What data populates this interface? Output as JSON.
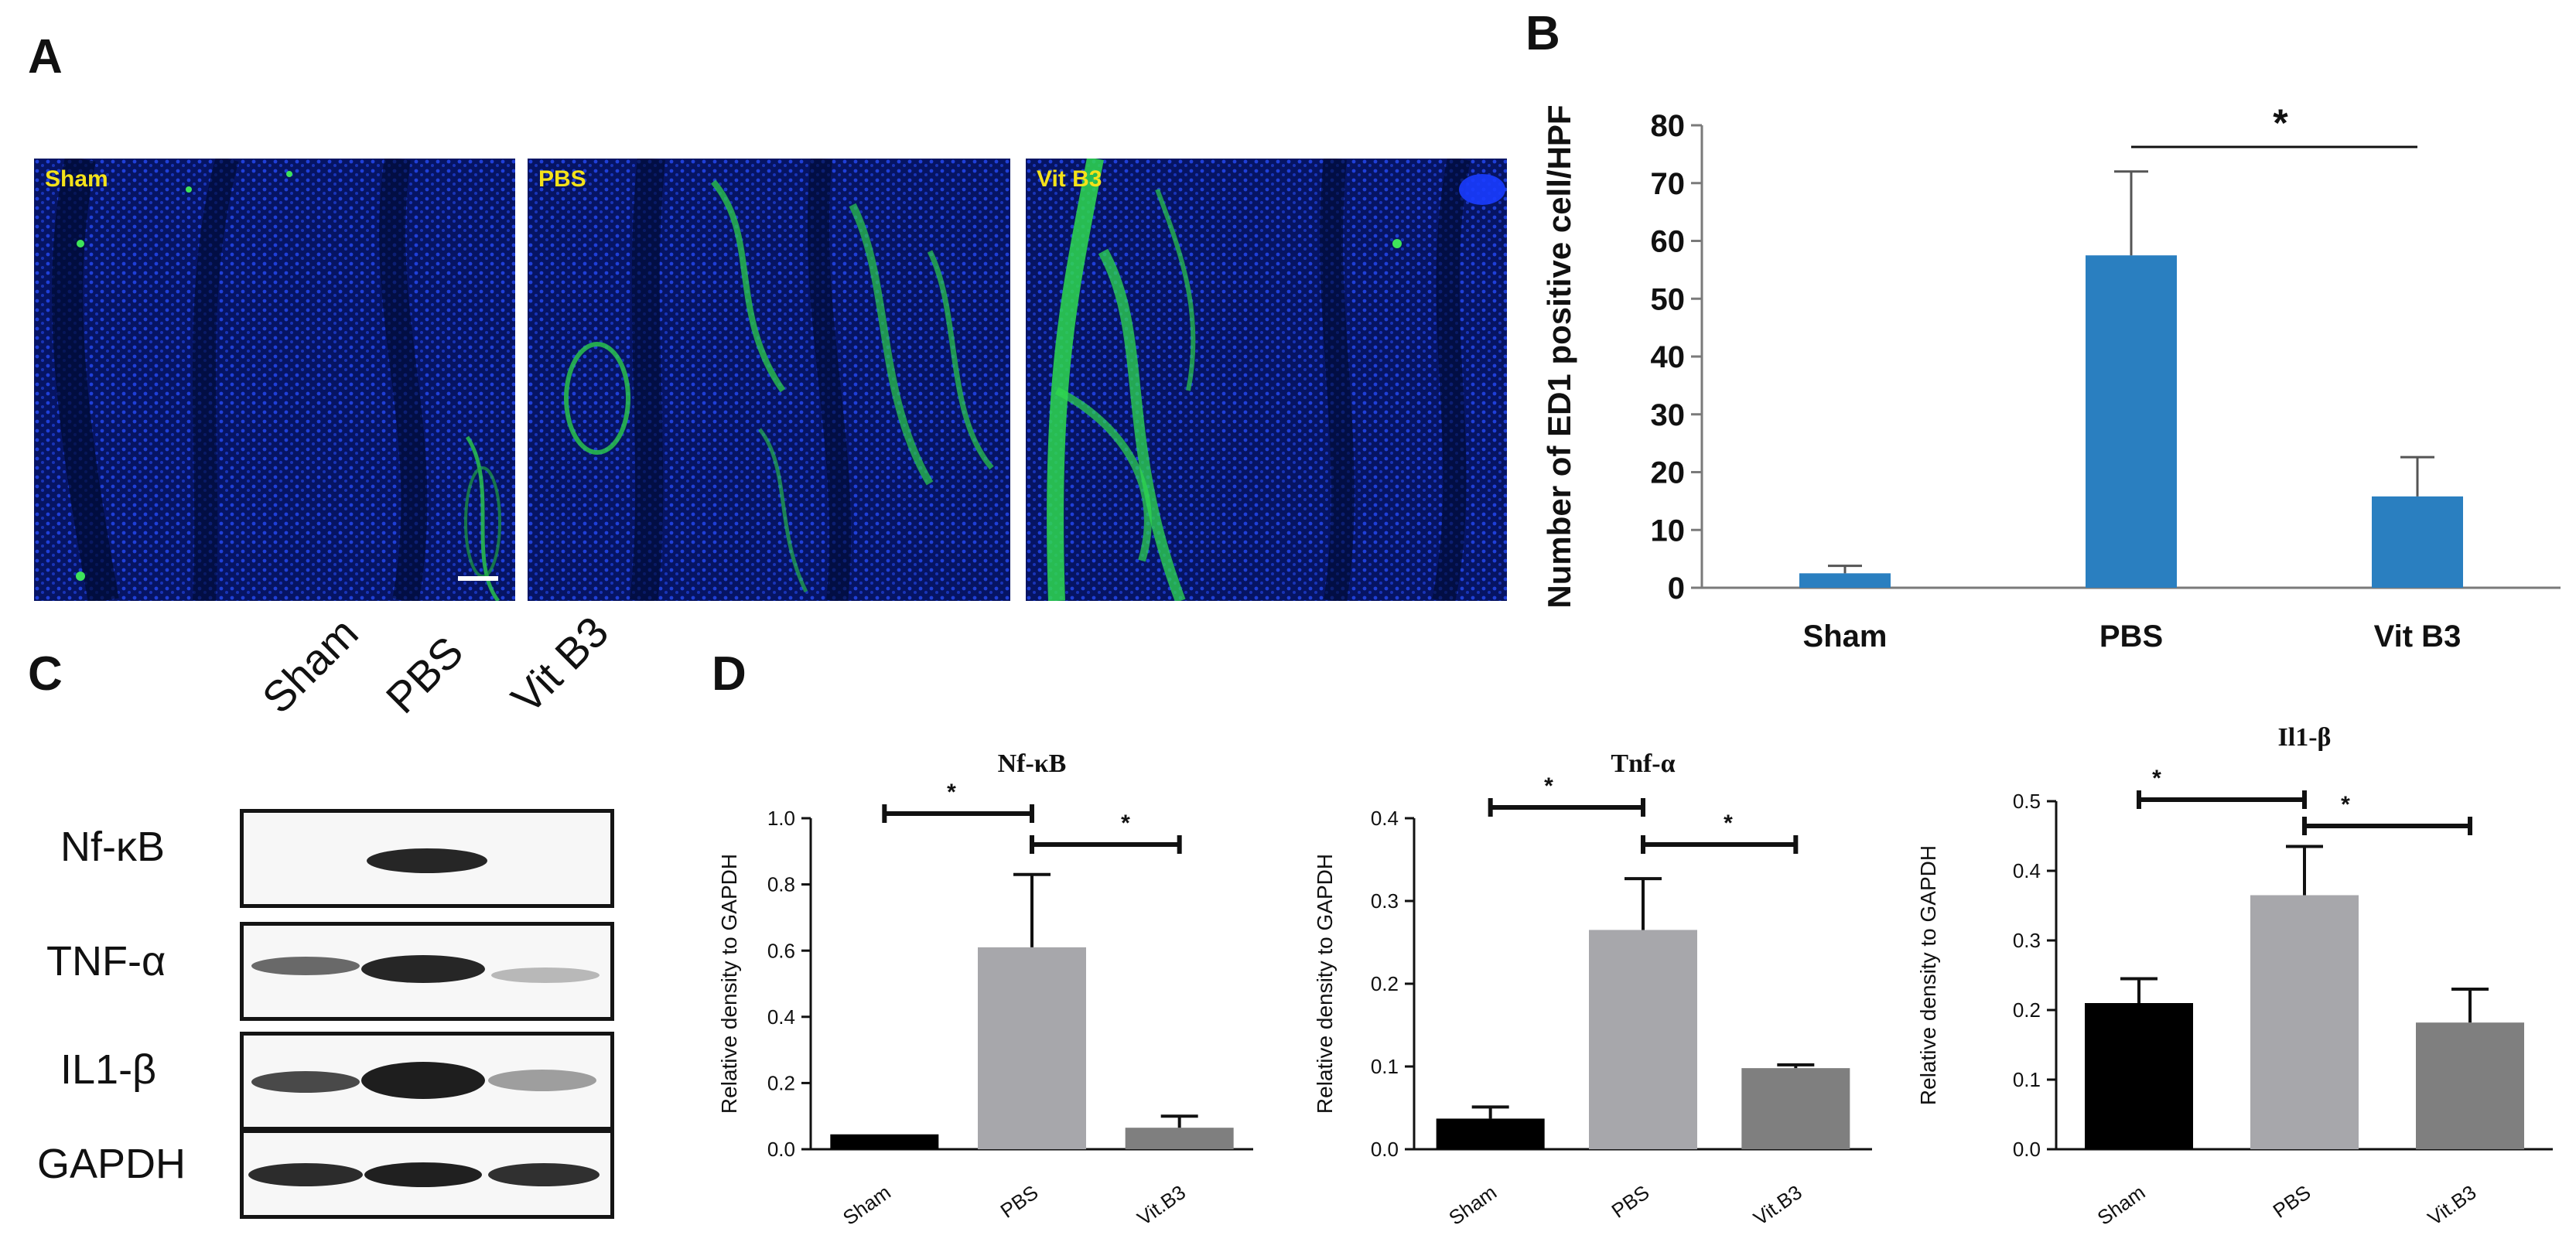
{
  "panel_letters": {
    "a": "A",
    "b": "B",
    "c": "C",
    "d": "D"
  },
  "panel_a": {
    "images": [
      {
        "label": "Sham"
      },
      {
        "label": "PBS"
      },
      {
        "label": "Vit B3"
      }
    ]
  },
  "panel_c": {
    "columns": [
      "Sham",
      "PBS",
      "Vit B3"
    ],
    "rows": [
      "Nf-κB",
      "TNF-α",
      "IL1-β",
      "GAPDH"
    ]
  },
  "chart_data": [
    {
      "id": "B",
      "type": "bar",
      "title": "",
      "ylabel": "Number of ED1 positive cell/HPF",
      "xlabel": "",
      "categories": [
        "Sham",
        "PBS",
        "Vit B3"
      ],
      "values": [
        2.5,
        57.5,
        15.8
      ],
      "errors": [
        1.3,
        14.5,
        6.8
      ],
      "ylim": [
        0,
        80
      ],
      "yticks": [
        "0",
        "10",
        "20",
        "30",
        "40",
        "50",
        "60",
        "70",
        "80"
      ],
      "bar_color": "#2a7fc0",
      "significance": [
        {
          "from": 1,
          "to": 2,
          "label": "*"
        }
      ]
    },
    {
      "id": "D1",
      "type": "bar",
      "title": "Nf-κB",
      "ylabel": "Relative density to GAPDH",
      "xlabel": "",
      "categories": [
        "Sham",
        "PBS",
        "Vit.B3"
      ],
      "values": [
        0.045,
        0.61,
        0.065
      ],
      "errors": [
        0,
        0.22,
        0.035
      ],
      "ylim": [
        0,
        1.0
      ],
      "yticks": [
        "0.0",
        "0.2",
        "0.4",
        "0.6",
        "0.8",
        "1.0"
      ],
      "bar_colors": [
        "#000000",
        "#a7a7ab",
        "#7f7f7f"
      ],
      "significance": [
        {
          "from": 0,
          "to": 1,
          "label": "*"
        },
        {
          "from": 1,
          "to": 2,
          "label": "*"
        }
      ]
    },
    {
      "id": "D2",
      "type": "bar",
      "title": "Tnf-α",
      "ylabel": "Relative density to GAPDH",
      "xlabel": "",
      "categories": [
        "Sham",
        "PBS",
        "Vit.B3"
      ],
      "values": [
        0.037,
        0.265,
        0.098
      ],
      "errors": [
        0.014,
        0.062,
        0.004
      ],
      "ylim": [
        0,
        0.4
      ],
      "yticks": [
        "0.0",
        "0.1",
        "0.2",
        "0.3",
        "0.4"
      ],
      "bar_colors": [
        "#000000",
        "#a7a7ab",
        "#7f7f7f"
      ],
      "significance": [
        {
          "from": 0,
          "to": 1,
          "label": "*"
        },
        {
          "from": 1,
          "to": 2,
          "label": "*"
        }
      ]
    },
    {
      "id": "D3",
      "type": "bar",
      "title": "Il1-β",
      "ylabel": "Relative density to GAPDH",
      "xlabel": "",
      "categories": [
        "Sham",
        "PBS",
        "Vit.B3"
      ],
      "values": [
        0.21,
        0.365,
        0.182
      ],
      "errors": [
        0.035,
        0.07,
        0.048
      ],
      "ylim": [
        0,
        0.5
      ],
      "yticks": [
        "0.0",
        "0.1",
        "0.2",
        "0.3",
        "0.4",
        "0.5"
      ],
      "bar_colors": [
        "#000000",
        "#a7a7ab",
        "#7f7f7f"
      ],
      "significance": [
        {
          "from": 0,
          "to": 1,
          "label": "*"
        },
        {
          "from": 1,
          "to": 2,
          "label": "*"
        }
      ]
    }
  ]
}
